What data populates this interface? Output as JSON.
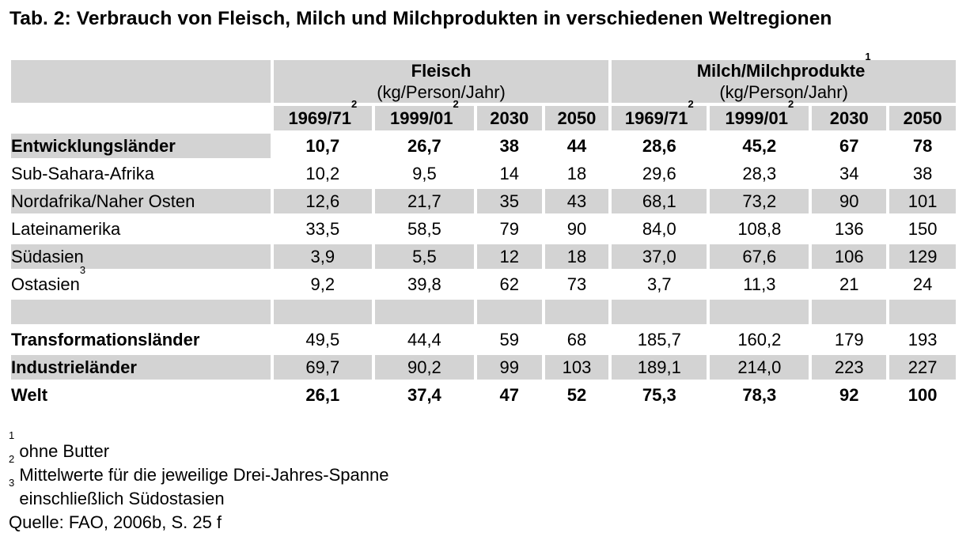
{
  "title": "Tab. 2: Verbrauch von Fleisch, Milch und Milchprodukten in verschiedenen Weltregionen",
  "groups": {
    "meat": {
      "title": "Fleisch",
      "unit": "(kg/Person/Jahr)"
    },
    "milk": {
      "title": "Milch/Milchprodukte",
      "sup": "1",
      "unit": "(kg/Person/Jahr)"
    }
  },
  "years": [
    {
      "label": "1969/71",
      "sup": "2"
    },
    {
      "label": "1999/01",
      "sup": "2"
    },
    {
      "label": "2030",
      "sup": ""
    },
    {
      "label": "2050",
      "sup": ""
    },
    {
      "label": "1969/71",
      "sup": "2"
    },
    {
      "label": "1999/01",
      "sup": "2"
    },
    {
      "label": "2030",
      "sup": ""
    },
    {
      "label": "2050",
      "sup": ""
    }
  ],
  "rows": [
    {
      "name": "Entwicklungsländer",
      "sup": "",
      "values": [
        "10,7",
        "26,7",
        "38",
        "44",
        "28,6",
        "45,2",
        "67",
        "78"
      ]
    },
    {
      "name": "Sub-Sahara-Afrika",
      "sup": "",
      "values": [
        "10,2",
        "9,5",
        "14",
        "18",
        "29,6",
        "28,3",
        "34",
        "38"
      ]
    },
    {
      "name": "Nordafrika/Naher Osten",
      "sup": "",
      "values": [
        "12,6",
        "21,7",
        "35",
        "43",
        "68,1",
        "73,2",
        "90",
        "101"
      ]
    },
    {
      "name": "Lateinamerika",
      "sup": "",
      "values": [
        "33,5",
        "58,5",
        "79",
        "90",
        "84,0",
        "108,8",
        "136",
        "150"
      ]
    },
    {
      "name": "Südasien",
      "sup": "",
      "values": [
        "3,9",
        "5,5",
        "12",
        "18",
        "37,0",
        "67,6",
        "106",
        "129"
      ]
    },
    {
      "name": "Ostasien",
      "sup": "3",
      "values": [
        "9,2",
        "39,8",
        "62",
        "73",
        "3,7",
        "11,3",
        "21",
        "24"
      ]
    },
    {
      "name": "Transformationsländer",
      "sup": "",
      "values": [
        "49,5",
        "44,4",
        "59",
        "68",
        "185,7",
        "160,2",
        "179",
        "193"
      ]
    },
    {
      "name": "Industrieländer",
      "sup": "",
      "values": [
        "69,7",
        "90,2",
        "99",
        "103",
        "189,1",
        "214,0",
        "223",
        "227"
      ]
    },
    {
      "name": "Welt",
      "sup": "",
      "values": [
        "26,1",
        "37,4",
        "47",
        "52",
        "75,3",
        "78,3",
        "92",
        "100"
      ]
    }
  ],
  "footnotes": [
    {
      "sup": "1",
      "text": "ohne Butter"
    },
    {
      "sup": "2",
      "text": "Mittelwerte für die jeweilige Drei-Jahres-Spanne"
    },
    {
      "sup": "3",
      "text": "einschließlich Südostasien"
    }
  ],
  "source": "Quelle: FAO, 2006b, S. 25 f"
}
